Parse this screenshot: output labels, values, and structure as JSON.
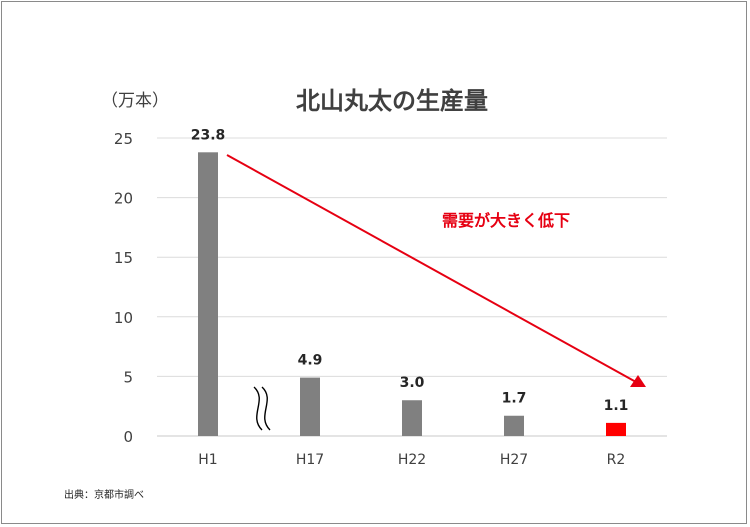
{
  "chart_data": {
    "type": "bar",
    "title": "北山丸太の生産量",
    "ylabel": "（万本）",
    "xlabel": "",
    "categories": [
      "H1",
      "H17",
      "H22",
      "H27",
      "R2"
    ],
    "values": [
      23.8,
      4.9,
      3.0,
      1.7,
      1.1
    ],
    "value_labels": [
      "23.8",
      "4.9",
      "3.0",
      "1.7",
      "1.1"
    ],
    "ylim": [
      0,
      25
    ],
    "yticks": [
      0,
      5,
      10,
      15,
      20,
      25
    ],
    "grid": true,
    "bar_color": "#808080",
    "highlight_color": "#ff0000",
    "highlight_index": 4,
    "axis_break_after_index": 0,
    "annotation": {
      "text": "需要が大きく低下",
      "color": "#e60012"
    },
    "arrow_color": "#e60012"
  },
  "source_note": "出典：京都市調べ"
}
